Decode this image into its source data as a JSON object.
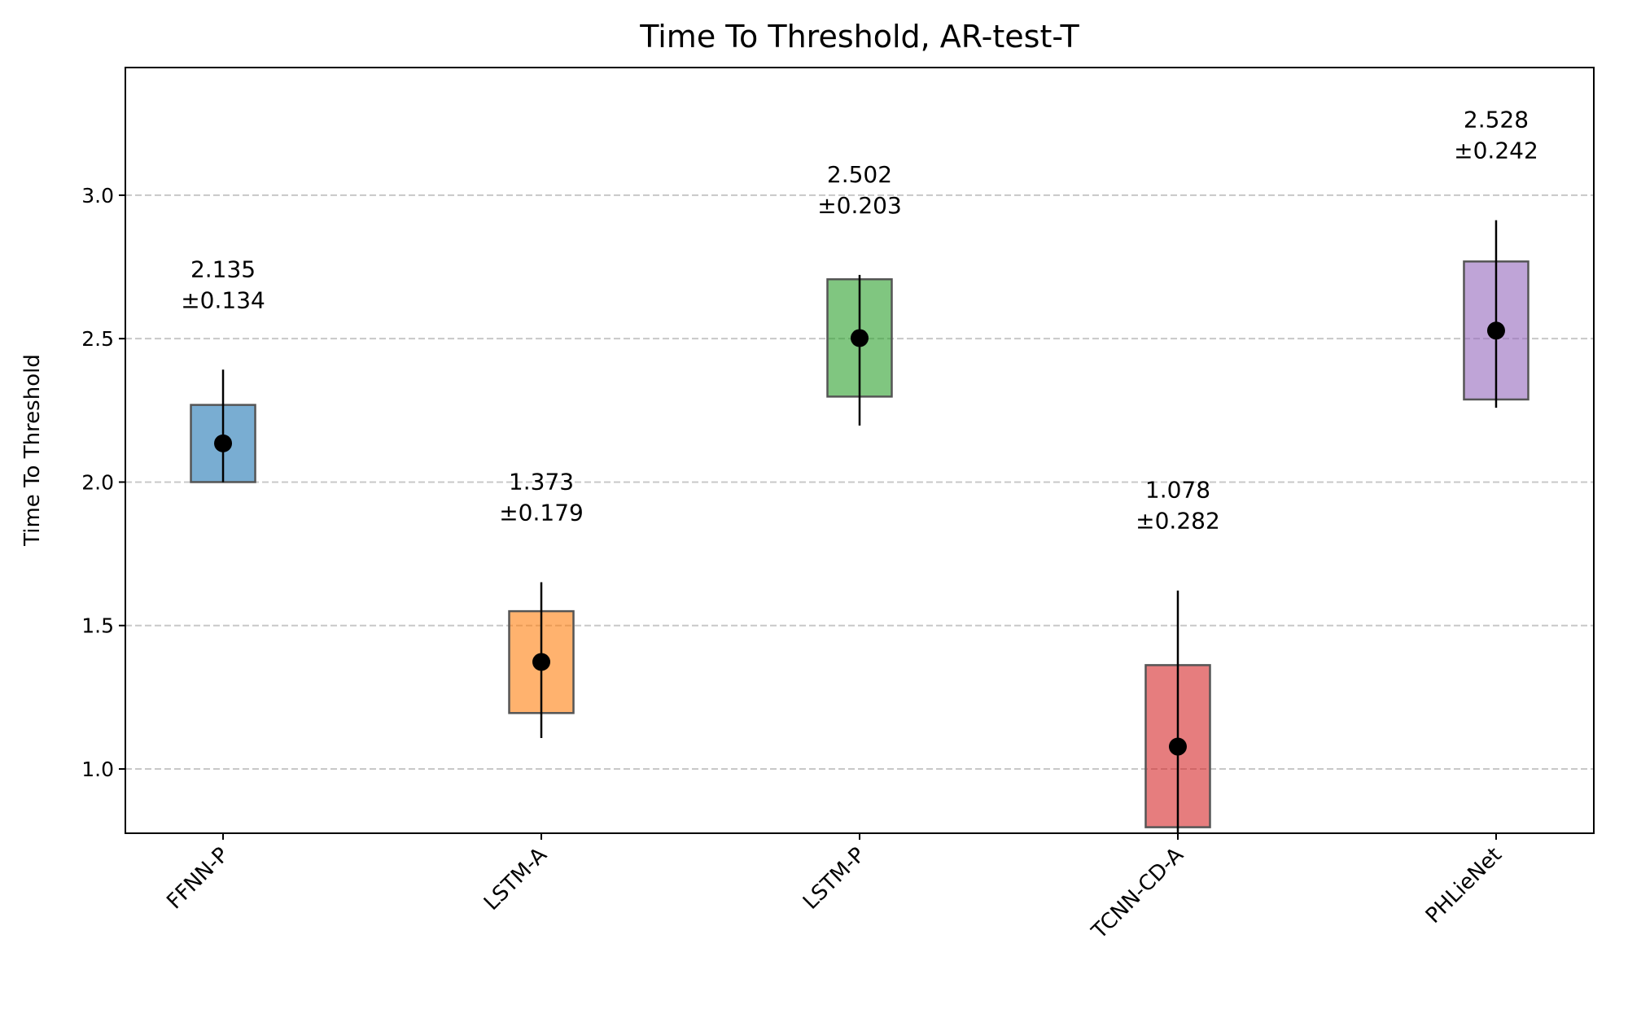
{
  "chart_data": {
    "type": "box",
    "title": "Time To Threshold, AR-test-T",
    "y_label": "Time To Threshold",
    "categories": [
      "FFNN-P",
      "LSTM-A",
      "LSTM-P",
      "TCNN-CD-A",
      "PHLieNet"
    ],
    "colors": [
      "#1f77b4",
      "#ff7f0e",
      "#2ca02c",
      "#d62728",
      "#9467bd"
    ],
    "values": [
      2.135,
      1.373,
      2.502,
      1.078,
      2.528
    ],
    "errors": [
      0.134,
      0.179,
      0.203,
      0.282,
      0.242
    ],
    "error_labels": [
      "±0.134",
      "±0.179",
      "±0.203",
      "±0.282",
      "±0.242"
    ],
    "box_low": [
      2.0,
      1.195,
      2.298,
      0.797,
      2.288
    ],
    "box_high": [
      2.269,
      1.55,
      2.707,
      1.362,
      2.769
    ],
    "whisker_low": [
      2.0,
      1.108,
      2.197,
      0.75,
      2.259
    ],
    "whisker_high": [
      2.392,
      1.651,
      2.722,
      1.622,
      2.913
    ],
    "ylim": [
      0.776,
      3.445
    ],
    "yticks": [
      {
        "value": 1.0,
        "label": "1.0"
      },
      {
        "value": 1.5,
        "label": "1.5"
      },
      {
        "value": 2.0,
        "label": "2.0"
      },
      {
        "value": 2.5,
        "label": "2.5"
      },
      {
        "value": 3.0,
        "label": "3.0"
      }
    ],
    "grid": true
  }
}
